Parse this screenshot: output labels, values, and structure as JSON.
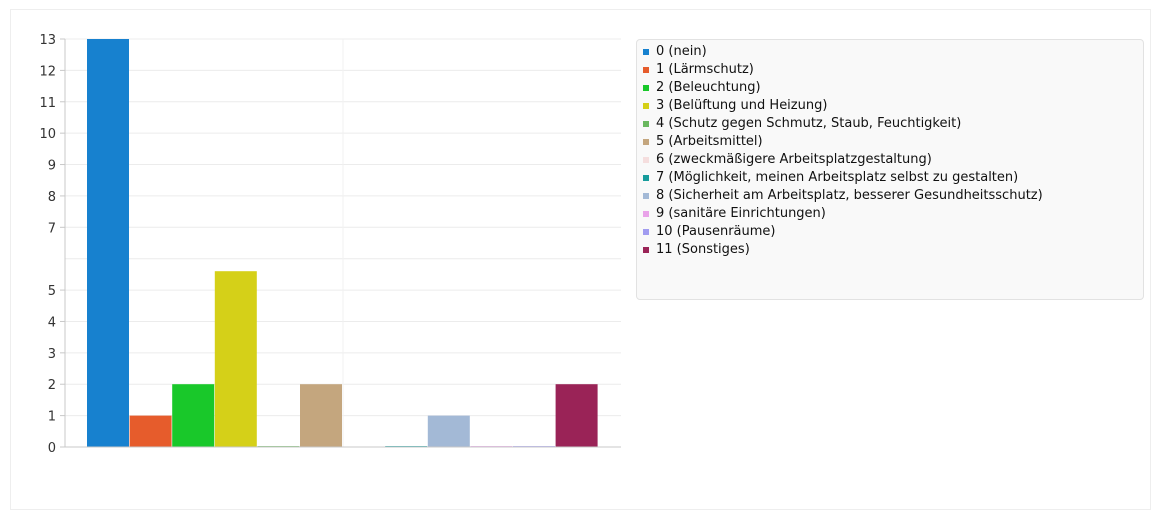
{
  "chart_data": {
    "type": "bar",
    "title": "",
    "xlabel": "",
    "ylabel": "",
    "ylim": [
      0,
      13
    ],
    "yticks": [
      0,
      1,
      2,
      3,
      4,
      5,
      7,
      8,
      9,
      10,
      11,
      12,
      13
    ],
    "grid": true,
    "legend_position": "right",
    "series": [
      {
        "name": "0 (nein)",
        "value": 13,
        "color": "#1781cf"
      },
      {
        "name": "1 (Lärmschutz)",
        "value": 1,
        "color": "#e65c2c"
      },
      {
        "name": "2 (Beleuchtung)",
        "value": 2,
        "color": "#19c82a"
      },
      {
        "name": "3 (Belüftung und Heizung)",
        "value": 5.6,
        "color": "#d5d018"
      },
      {
        "name": "4 (Schutz gegen Schmutz, Staub, Feuchtigkeit)",
        "value": 0.03,
        "color": "#6ab85f"
      },
      {
        "name": "5 (Arbeitsmittel)",
        "value": 2,
        "color": "#c4a67e"
      },
      {
        "name": "6 (zweckmäßigere Arbeitsplatzgestaltung)",
        "value": 0,
        "color": "#f5dede"
      },
      {
        "name": "7 (Möglichkeit, meinen Arbeitsplatz selbst zu gestalten)",
        "value": 0.03,
        "color": "#169c9c"
      },
      {
        "name": "8 (Sicherheit am Arbeitsplatz, besserer Gesundheitsschutz)",
        "value": 1,
        "color": "#a3b9d6"
      },
      {
        "name": "9 (sanitäre Einrichtungen)",
        "value": 0.03,
        "color": "#e9a3e9"
      },
      {
        "name": "10 (Pausenräume)",
        "value": 0.03,
        "color": "#a19cf0"
      },
      {
        "name": "11 (Sonstiges)",
        "value": 2,
        "color": "#9a2357"
      }
    ]
  }
}
